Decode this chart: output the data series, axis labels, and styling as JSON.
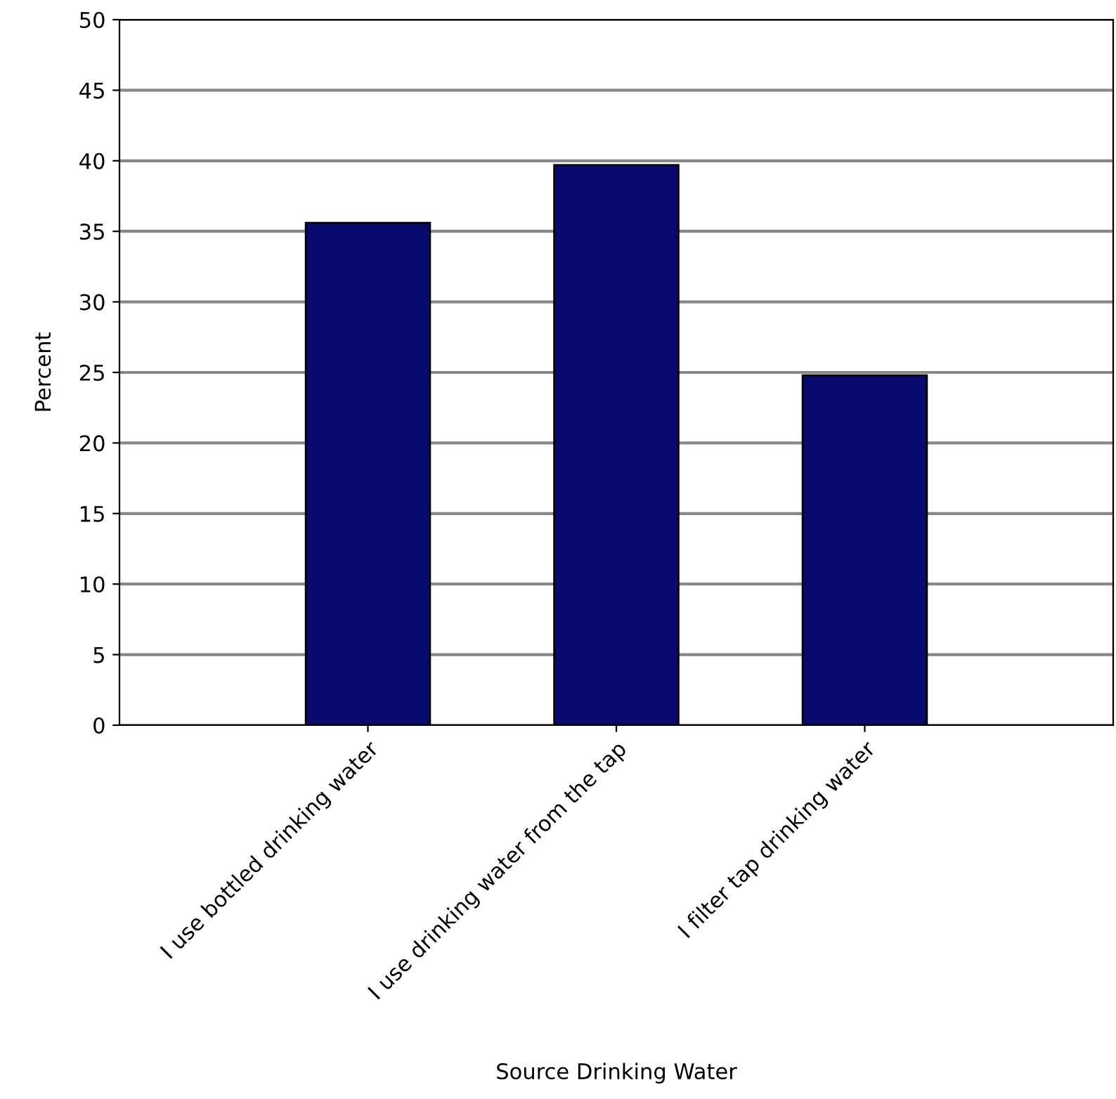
{
  "chart_data": {
    "type": "bar",
    "xlabel": "Source Drinking Water",
    "ylabel": "Percent",
    "categories": [
      "I use bottled drinking water",
      "I use drinking water from the tap",
      "I filter tap drinking water"
    ],
    "values": [
      35.6,
      39.7,
      24.8
    ],
    "color": "#0a0a6e",
    "ylim": [
      0,
      50
    ],
    "yticks": [
      0,
      5,
      10,
      15,
      20,
      25,
      30,
      35,
      40,
      45,
      50
    ],
    "grid": "y"
  }
}
